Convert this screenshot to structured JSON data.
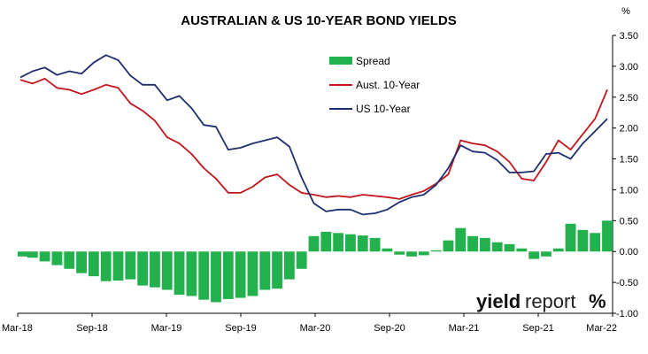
{
  "chart_data": {
    "type": "line",
    "title": "AUSTRALIAN & US 10-YEAR BOND YIELDS",
    "y_unit_label": "%",
    "ylim": [
      -1.0,
      3.5
    ],
    "y_ticks": [
      "3.50",
      "3.00",
      "2.50",
      "2.00",
      "1.50",
      "1.00",
      "0.50",
      "0.00",
      "-0.50",
      "-1.00"
    ],
    "x_ticks": [
      "Mar-18",
      "Sep-18",
      "Mar-19",
      "Sep-19",
      "Mar-20",
      "Sep-20",
      "Mar-21",
      "Sep-21",
      "Mar-22"
    ],
    "x_range": [
      "2018-03",
      "2022-03"
    ],
    "legend_position": "upper-center",
    "grid": false,
    "x": [
      "2018-03",
      "2018-04",
      "2018-05",
      "2018-06",
      "2018-07",
      "2018-08",
      "2018-09",
      "2018-10",
      "2018-11",
      "2018-12",
      "2019-01",
      "2019-02",
      "2019-03",
      "2019-04",
      "2019-05",
      "2019-06",
      "2019-07",
      "2019-08",
      "2019-09",
      "2019-10",
      "2019-11",
      "2019-12",
      "2020-01",
      "2020-02",
      "2020-03",
      "2020-04",
      "2020-05",
      "2020-06",
      "2020-07",
      "2020-08",
      "2020-09",
      "2020-10",
      "2020-11",
      "2020-12",
      "2021-01",
      "2021-02",
      "2021-03",
      "2021-04",
      "2021-05",
      "2021-06",
      "2021-07",
      "2021-08",
      "2021-09",
      "2021-10",
      "2021-11",
      "2021-12",
      "2022-01",
      "2022-02",
      "2022-03"
    ],
    "series": [
      {
        "name": "Spread",
        "color": "#22B14C",
        "kind": "bar",
        "values": [
          -0.08,
          -0.1,
          -0.16,
          -0.22,
          -0.28,
          -0.35,
          -0.4,
          -0.48,
          -0.47,
          -0.45,
          -0.55,
          -0.58,
          -0.62,
          -0.7,
          -0.72,
          -0.78,
          -0.82,
          -0.77,
          -0.75,
          -0.72,
          -0.62,
          -0.6,
          -0.45,
          -0.28,
          0.25,
          0.32,
          0.3,
          0.28,
          0.26,
          0.22,
          0.05,
          -0.05,
          -0.08,
          -0.06,
          0.02,
          0.18,
          0.38,
          0.25,
          0.22,
          0.15,
          0.12,
          0.05,
          -0.12,
          -0.08,
          0.05,
          0.45,
          0.35,
          0.3,
          0.5
        ]
      },
      {
        "name": "Aust. 10-Year",
        "color": "#C0161C",
        "kind": "line",
        "values": [
          2.78,
          2.72,
          2.8,
          2.65,
          2.62,
          2.55,
          2.62,
          2.7,
          2.65,
          2.4,
          2.28,
          2.12,
          1.85,
          1.75,
          1.58,
          1.35,
          1.18,
          0.95,
          0.95,
          1.05,
          1.2,
          1.25,
          1.08,
          0.95,
          0.92,
          0.88,
          0.9,
          0.88,
          0.92,
          0.9,
          0.88,
          0.85,
          0.92,
          0.98,
          1.1,
          1.25,
          1.8,
          1.75,
          1.72,
          1.62,
          1.45,
          1.18,
          1.15,
          1.45,
          1.8,
          1.65,
          1.9,
          2.15,
          2.62
        ]
      },
      {
        "name": "US 10-Year",
        "color": "#1F2F6E",
        "kind": "line",
        "values": [
          2.82,
          2.92,
          2.98,
          2.86,
          2.92,
          2.88,
          3.06,
          3.18,
          3.1,
          2.85,
          2.7,
          2.7,
          2.45,
          2.52,
          2.32,
          2.05,
          2.02,
          1.65,
          1.68,
          1.75,
          1.8,
          1.85,
          1.7,
          1.2,
          0.78,
          0.65,
          0.68,
          0.68,
          0.6,
          0.62,
          0.68,
          0.8,
          0.88,
          0.92,
          1.08,
          1.35,
          1.72,
          1.62,
          1.6,
          1.48,
          1.28,
          1.28,
          1.3,
          1.58,
          1.6,
          1.5,
          1.75,
          1.95,
          2.15
        ]
      }
    ]
  },
  "logo": {
    "text_bold": "yield",
    "text_light": "report",
    "symbol": "%"
  }
}
